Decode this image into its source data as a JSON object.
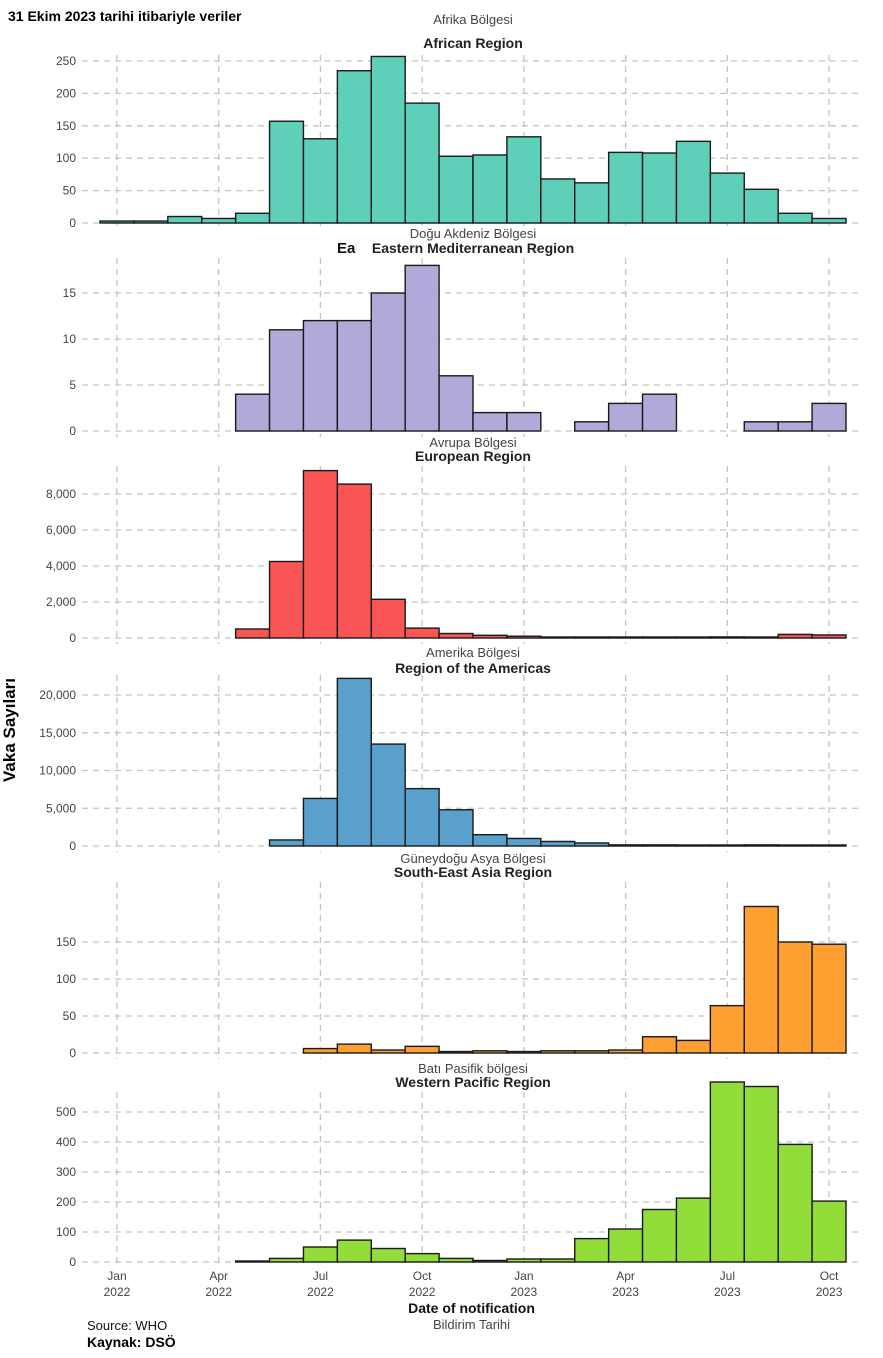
{
  "header": "31 Ekim 2023 tarihi itibariyle  veriler",
  "source": "Source: WHO",
  "source_tr": "Kaynak: DSÖ",
  "chart_data": {
    "type": "bar",
    "ylabel": "Vaka Sayıları",
    "xlabel": "Date of notification",
    "xlabel_tr": "Bildirim Tarihi",
    "categories": [
      "Jan 2022",
      "Feb 2022",
      "Mar 2022",
      "Apr 2022",
      "May 2022",
      "Jun 2022",
      "Jul 2022",
      "Aug 2022",
      "Sep 2022",
      "Oct 2022",
      "Nov 2022",
      "Dec 2022",
      "Jan 2023",
      "Feb 2023",
      "Mar 2023",
      "Apr 2023",
      "May 2023",
      "Jun 2023",
      "Jul 2023",
      "Aug 2023",
      "Sep 2023",
      "Oct 2023"
    ],
    "x_ticks": [
      {
        "month": "Jan",
        "year": "2022",
        "index": 0
      },
      {
        "month": "Apr",
        "year": "2022",
        "index": 3
      },
      {
        "month": "Jul",
        "year": "2022",
        "index": 6
      },
      {
        "month": "Oct",
        "year": "2022",
        "index": 9
      },
      {
        "month": "Jan",
        "year": "2023",
        "index": 12
      },
      {
        "month": "Apr",
        "year": "2023",
        "index": 15
      },
      {
        "month": "Jul",
        "year": "2023",
        "index": 18
      },
      {
        "month": "Oct",
        "year": "2023",
        "index": 21
      }
    ],
    "grid": true,
    "series": [
      {
        "name": "African Region",
        "name_tr": "Afrika Bölgesi",
        "color": "#5ecfb9",
        "yticks": [
          0,
          50,
          100,
          150,
          200,
          250
        ],
        "ytick_labels": [
          "0",
          "50",
          "100",
          "150",
          "200",
          "250"
        ],
        "values": [
          3,
          3,
          10,
          7,
          15,
          157,
          130,
          235,
          257,
          185,
          103,
          105,
          133,
          68,
          62,
          109,
          108,
          126,
          77,
          52,
          15,
          7
        ]
      },
      {
        "name": "Eastern Mediterranean Region",
        "name_tr": "Doğu Akdeniz Bölgesi",
        "name_prefix": "Ea",
        "color": "#b1a9d8",
        "yticks": [
          0,
          5,
          10,
          15
        ],
        "ytick_labels": [
          "0",
          "5",
          "10",
          "15"
        ],
        "values": [
          null,
          null,
          null,
          null,
          4,
          11,
          12,
          12,
          15,
          18,
          6,
          2,
          2,
          null,
          1,
          3,
          4,
          null,
          null,
          1,
          1,
          3
        ]
      },
      {
        "name": "European Region",
        "name_tr": "Avrupa Bölgesi",
        "color": "#fa5555",
        "yticks": [
          0,
          2000,
          4000,
          6000,
          8000
        ],
        "ytick_labels": [
          "0",
          "2,000",
          "4,000",
          "6,000",
          "8,000"
        ],
        "values": [
          null,
          null,
          null,
          null,
          500,
          4250,
          9300,
          8550,
          2150,
          550,
          250,
          150,
          100,
          30,
          20,
          20,
          30,
          20,
          60,
          20,
          200,
          170
        ]
      },
      {
        "name": "Region of the Americas",
        "name_tr": "Amerika Bölgesi",
        "color": "#5aa0cd",
        "yticks": [
          0,
          5000,
          10000,
          15000,
          20000
        ],
        "ytick_labels": [
          "0",
          "5,000",
          "10,000",
          "15,000",
          "20,000"
        ],
        "values": [
          null,
          null,
          null,
          null,
          null,
          800,
          6300,
          22200,
          13500,
          7600,
          4800,
          1500,
          1000,
          600,
          400,
          150,
          150,
          100,
          100,
          150,
          50,
          100
        ]
      },
      {
        "name": "South-East Asia Region",
        "name_tr": "Güneydoğu Asya Bölgesi",
        "color": "#fe9f32",
        "yticks": [
          0,
          50,
          100,
          150
        ],
        "ytick_labels": [
          "0",
          "50",
          "100",
          "150"
        ],
        "values": [
          null,
          null,
          null,
          null,
          null,
          null,
          6,
          12,
          4,
          9,
          2,
          3,
          2,
          3,
          3,
          4,
          22,
          17,
          64,
          198,
          150,
          147
        ]
      },
      {
        "name": "Western Pacific Region",
        "name_tr": "Batı Pasifik bölgesi",
        "color": "#92dd3a",
        "yticks": [
          0,
          100,
          200,
          300,
          400,
          500
        ],
        "ytick_labels": [
          "0",
          "100",
          "200",
          "300",
          "400",
          "500"
        ],
        "values": [
          null,
          null,
          null,
          null,
          2,
          12,
          50,
          73,
          45,
          28,
          12,
          5,
          10,
          10,
          78,
          110,
          175,
          213,
          600,
          585,
          392,
          203
        ]
      }
    ]
  }
}
